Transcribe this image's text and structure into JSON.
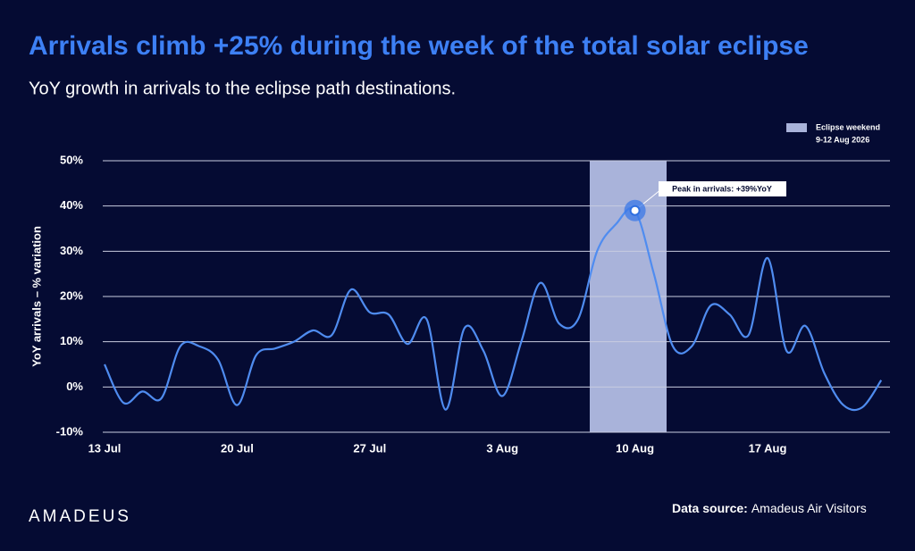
{
  "chart_data": {
    "type": "line",
    "title": "Arrivals climb +25% during the week of the total solar eclipse",
    "subtitle": "YoY growth in arrivals to the eclipse path destinations.",
    "y_label": "YoY arrivals – % variation",
    "categories": [
      "13 Jul",
      null,
      null,
      null,
      null,
      null,
      null,
      "20 Jul",
      null,
      null,
      null,
      null,
      null,
      null,
      "27 Jul",
      null,
      null,
      null,
      null,
      null,
      null,
      "3 Aug",
      null,
      null,
      null,
      null,
      null,
      null,
      "10 Aug",
      null,
      null,
      null,
      null,
      null,
      null,
      "17 Aug",
      null,
      null,
      null,
      null,
      null,
      null
    ],
    "values": [
      5,
      -3.5,
      -1,
      -2.5,
      9,
      9,
      6,
      -4,
      7,
      8.5,
      10,
      12.5,
      11.5,
      21.5,
      16.5,
      16,
      9.5,
      15,
      -5,
      13,
      8,
      -2,
      10,
      23,
      14,
      15,
      30,
      36,
      39,
      25,
      9,
      9,
      18,
      16,
      11.5,
      28.5,
      8,
      13.5,
      3,
      -4,
      -4.5,
      1.5
    ],
    "color": "#4f8cf0",
    "ylim": [
      -10,
      50
    ],
    "yticks": [
      {
        "value": -10,
        "label": "-10%"
      },
      {
        "value": 0,
        "label": "0%"
      },
      {
        "value": 10,
        "label": "10%"
      },
      {
        "value": 20,
        "label": "20%"
      },
      {
        "value": 30,
        "label": "30%"
      },
      {
        "value": 40,
        "label": "40%"
      },
      {
        "value": 50,
        "label": "50%"
      }
    ],
    "grid": true,
    "band_legend": {
      "name": "Eclipse weekend",
      "dates": "9-12 Aug 2026",
      "color": "#a9b3da"
    },
    "annotation": "Peak in arrivals: +39%YoY",
    "source_label": "Data source:",
    "source": "Amadeus Air Visitors",
    "logo": "amadeus"
  }
}
